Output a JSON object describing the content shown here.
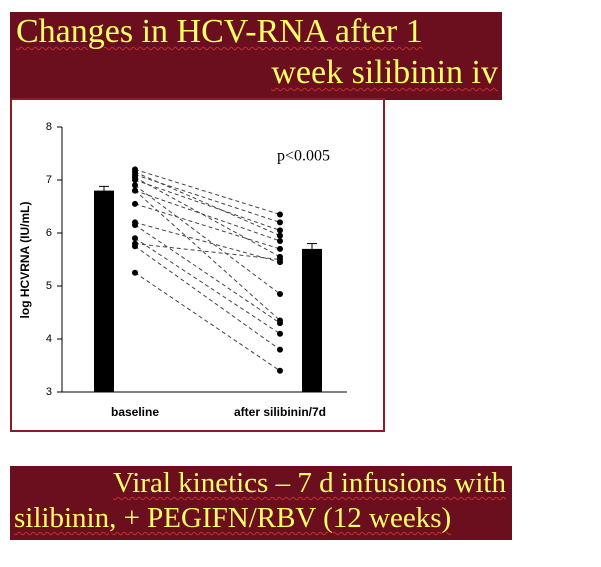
{
  "slide": {
    "title_lines": [
      "Changes in HCV-RNA after 1",
      "week silibinin iv"
    ],
    "footer_lines": [
      "Viral kinetics – 7 d infusions with",
      "silibinin, + PEGIFN/RBV (12 weeks)"
    ]
  },
  "chart_data": {
    "type": "paired-bar",
    "y_label": "log HCVRNA (IU/mL)",
    "annotation": "p<0.005",
    "categories": [
      "baseline",
      "after silibinin/7d"
    ],
    "means": [
      6.8,
      5.7
    ],
    "errors": [
      0.08,
      0.1
    ],
    "color": "#000000",
    "patients": [
      [
        7.2,
        6.35
      ],
      [
        7.15,
        5.95
      ],
      [
        7.1,
        6.2
      ],
      [
        7.05,
        5.55
      ],
      [
        7.0,
        6.05
      ],
      [
        6.9,
        4.85
      ],
      [
        6.8,
        5.85
      ],
      [
        6.8,
        4.35
      ],
      [
        6.55,
        5.7
      ],
      [
        6.2,
        5.45
      ],
      [
        6.15,
        4.3
      ],
      [
        5.9,
        4.1
      ],
      [
        5.8,
        5.5
      ],
      [
        5.75,
        3.8
      ],
      [
        5.25,
        3.4
      ]
    ],
    "ylim": [
      3,
      8
    ],
    "yticks": [
      3,
      4,
      5,
      6,
      7,
      8
    ]
  }
}
